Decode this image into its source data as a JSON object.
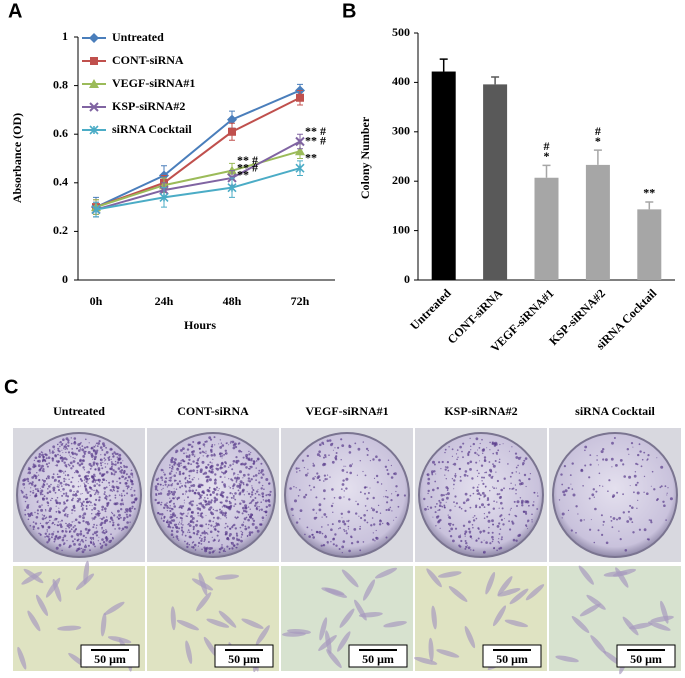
{
  "panel_labels": [
    "A",
    "B",
    "C"
  ],
  "chart_data": [
    {
      "type": "line",
      "ylabel": "Absorbance (OD)",
      "xlabel": "Hours",
      "categories": [
        "0h",
        "24h",
        "48h",
        "72h"
      ],
      "ylim": [
        0,
        1
      ],
      "yticks": [
        0,
        0.2,
        0.4,
        0.6,
        0.8,
        1
      ],
      "legend": "upper-left",
      "series": [
        {
          "name": "Untreated",
          "color": "#4a7ebb",
          "marker": "diamond",
          "values": [
            0.3,
            0.43,
            0.66,
            0.78
          ],
          "errors": [
            0.04,
            0.04,
            0.035,
            0.025
          ]
        },
        {
          "name": "CONT-siRNA",
          "color": "#c0504d",
          "marker": "square",
          "values": [
            0.3,
            0.4,
            0.61,
            0.75
          ],
          "errors": [
            0.03,
            0.03,
            0.035,
            0.03
          ]
        },
        {
          "name": "VEGF-siRNA#1",
          "color": "#9bbb59",
          "marker": "triangle",
          "values": [
            0.3,
            0.39,
            0.45,
            0.53
          ],
          "errors": [
            0.03,
            0.03,
            0.03,
            0.03
          ],
          "significance": [
            null,
            null,
            "** #",
            "** #"
          ]
        },
        {
          "name": "KSP-siRNA#2",
          "color": "#8064a2",
          "marker": "x",
          "values": [
            0.29,
            0.37,
            0.42,
            0.57
          ],
          "errors": [
            0.03,
            0.03,
            0.03,
            0.03
          ],
          "significance": [
            null,
            null,
            "** #",
            "** #"
          ]
        },
        {
          "name": "siRNA Cocktail",
          "color": "#4bacc6",
          "marker": "star",
          "values": [
            0.29,
            0.34,
            0.38,
            0.46
          ],
          "errors": [
            0.03,
            0.04,
            0.04,
            0.03
          ],
          "significance": [
            null,
            null,
            "**",
            "**"
          ]
        }
      ]
    },
    {
      "type": "bar",
      "ylabel": "Colony Number",
      "categories": [
        "Untreated",
        "CONT-siRNA",
        "VEGF-siRNA#1",
        "KSP-siRNA#2",
        "siRNA Cocktail"
      ],
      "values": [
        422,
        396,
        207,
        233,
        143
      ],
      "errors": [
        25,
        15,
        25,
        30,
        15
      ],
      "colors": [
        "#000000",
        "#595959",
        "#a6a6a6",
        "#a6a6a6",
        "#a6a6a6"
      ],
      "significance": [
        null,
        null,
        [
          "#",
          "*"
        ],
        [
          "#",
          "*"
        ],
        [
          "**"
        ]
      ],
      "ylim": [
        0,
        500
      ],
      "yticks": [
        0,
        100,
        200,
        300,
        400,
        500
      ]
    }
  ],
  "images": {
    "columns": [
      "Untreated",
      "CONT-siRNA",
      "VEGF-siRNA#1",
      "KSP-siRNA#2",
      "siRNA Cocktail"
    ],
    "scale_bars": [
      "50 μm",
      "50 μm",
      "50 μm",
      "50 μm",
      "50 μm"
    ]
  }
}
